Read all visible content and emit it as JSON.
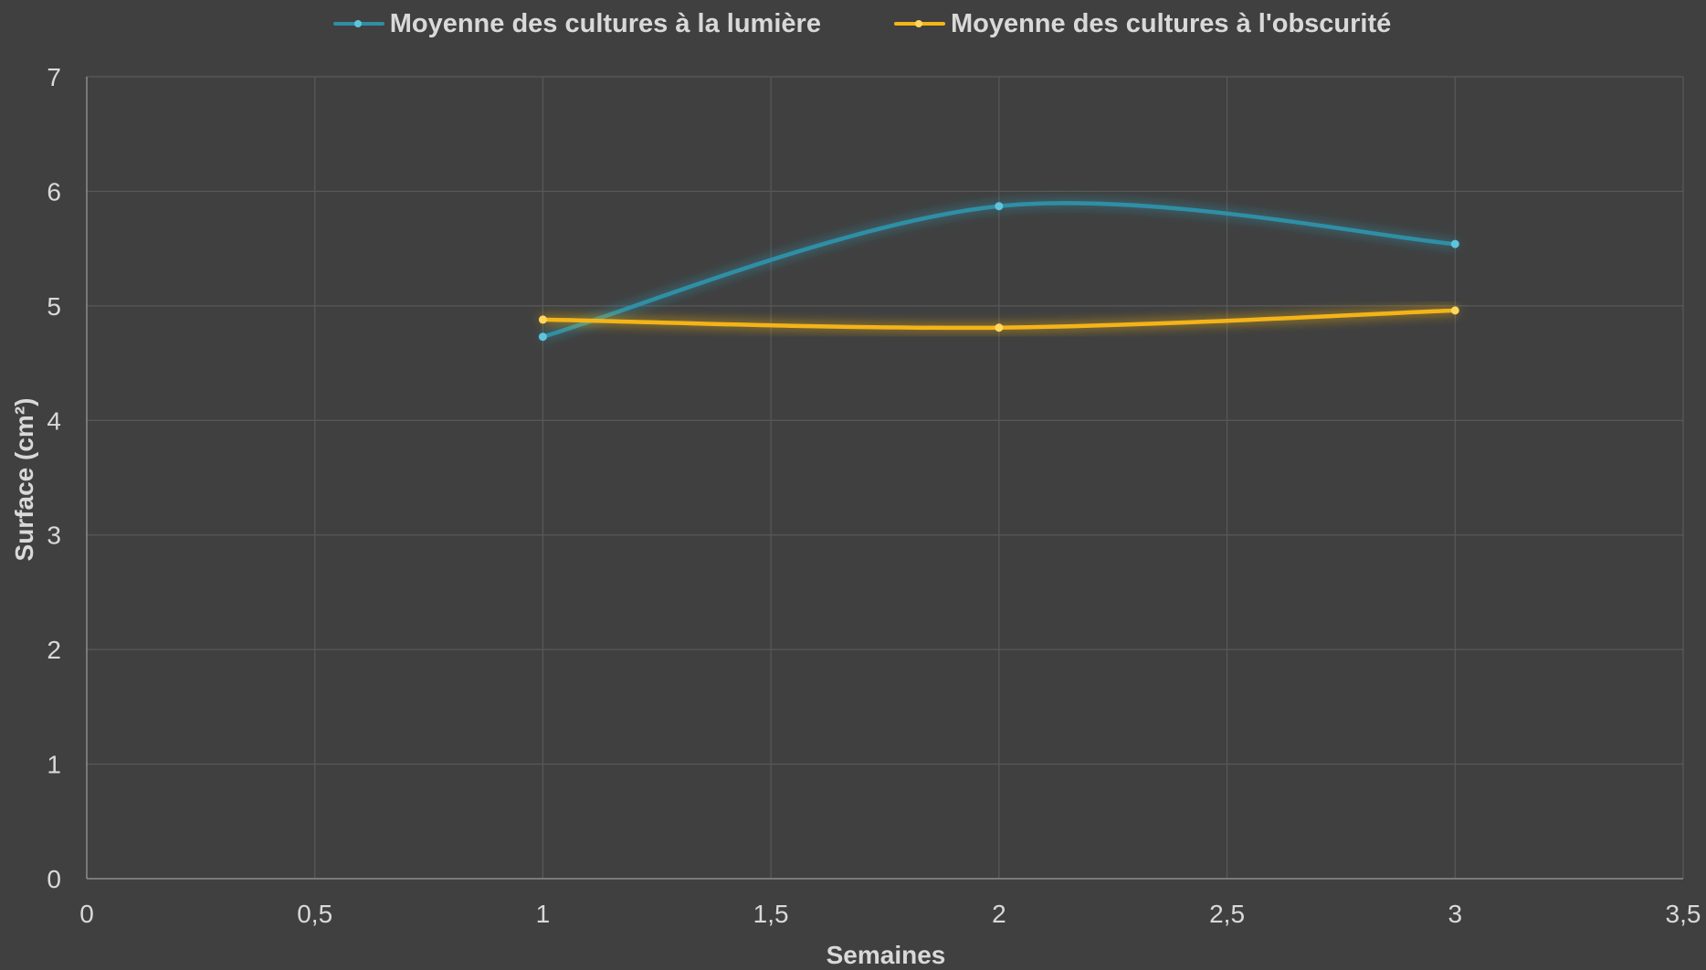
{
  "chart_data": {
    "type": "line",
    "smooth": true,
    "xlabel": "Semaines",
    "ylabel": "Surface (cm²)",
    "xlim": [
      0,
      3.5
    ],
    "ylim": [
      0,
      7
    ],
    "x_ticks": [
      "0",
      "0,5",
      "1",
      "1,5",
      "2",
      "2,5",
      "3",
      "3,5"
    ],
    "x_tick_values": [
      0,
      0.5,
      1,
      1.5,
      2,
      2.5,
      3,
      3.5
    ],
    "y_ticks": [
      "0",
      "1",
      "2",
      "3",
      "4",
      "5",
      "6",
      "7"
    ],
    "y_tick_values": [
      0,
      1,
      2,
      3,
      4,
      5,
      6,
      7
    ],
    "grid": true,
    "legend_position": "top",
    "background": "#404040",
    "grid_color": "#595959",
    "axis_color": "#8c8c8c",
    "text_color": "#d9d9d9",
    "series": [
      {
        "name": "Moyenne des cultures à la lumière",
        "color": "#2e8fa6",
        "marker_color": "#5ec4dc",
        "x": [
          1,
          2,
          3
        ],
        "y": [
          4.73,
          5.87,
          5.54
        ]
      },
      {
        "name": "Moyenne des cultures à l'obscurité",
        "color": "#f5b417",
        "marker_color": "#ffd75e",
        "x": [
          1,
          2,
          3
        ],
        "y": [
          4.88,
          4.81,
          4.96
        ]
      }
    ]
  }
}
